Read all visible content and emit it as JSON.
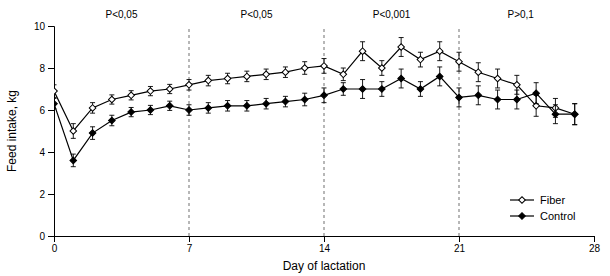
{
  "chart_data": {
    "type": "line",
    "x_label": "Day of lactation",
    "y_label": "Feed intake, kg",
    "x": [
      0,
      1,
      2,
      3,
      4,
      5,
      6,
      7,
      8,
      9,
      10,
      11,
      12,
      13,
      14,
      15,
      16,
      17,
      18,
      19,
      20,
      21,
      22,
      23,
      24,
      25,
      26,
      27
    ],
    "series": [
      {
        "name": "Fiber",
        "color": "#000000",
        "marker": "diamond-open",
        "values": [
          6.9,
          5.0,
          6.1,
          6.5,
          6.7,
          6.9,
          7.0,
          7.2,
          7.4,
          7.5,
          7.6,
          7.7,
          7.8,
          8.0,
          8.1,
          7.7,
          8.8,
          8.0,
          9.0,
          8.4,
          8.8,
          8.3,
          7.8,
          7.5,
          7.2,
          6.2,
          6.1,
          5.8
        ],
        "errors": [
          0.3,
          0.35,
          0.25,
          0.22,
          0.22,
          0.22,
          0.22,
          0.25,
          0.25,
          0.25,
          0.25,
          0.25,
          0.25,
          0.3,
          0.35,
          0.3,
          0.45,
          0.35,
          0.45,
          0.35,
          0.45,
          0.45,
          0.45,
          0.45,
          0.45,
          0.5,
          0.45,
          0.5
        ]
      },
      {
        "name": "Control",
        "color": "#000000",
        "marker": "diamond",
        "values": [
          6.3,
          3.6,
          4.9,
          5.5,
          5.9,
          6.0,
          6.2,
          6.0,
          6.1,
          6.2,
          6.2,
          6.3,
          6.4,
          6.5,
          6.7,
          7.0,
          7.0,
          7.0,
          7.5,
          7.0,
          7.6,
          6.6,
          6.7,
          6.5,
          6.5,
          6.8,
          5.8,
          5.8
        ],
        "errors": [
          0.25,
          0.3,
          0.3,
          0.25,
          0.22,
          0.22,
          0.22,
          0.25,
          0.25,
          0.25,
          0.25,
          0.25,
          0.25,
          0.3,
          0.35,
          0.3,
          0.45,
          0.35,
          0.45,
          0.35,
          0.45,
          0.45,
          0.45,
          0.45,
          0.45,
          0.5,
          0.45,
          0.5
        ]
      }
    ],
    "vlines": [
      7,
      14,
      21
    ],
    "annotations": [
      {
        "x": 3.5,
        "text": "P<0,05"
      },
      {
        "x": 10.5,
        "text": "P<0,05"
      },
      {
        "x": 17.5,
        "text": "P<0,001"
      },
      {
        "x": 24.2,
        "text": "P>0,1"
      }
    ],
    "xlim": [
      0,
      28
    ],
    "ylim": [
      0,
      10
    ],
    "xticks": [
      0,
      7,
      14,
      21,
      28
    ],
    "yticks": [
      0,
      2,
      4,
      6,
      8,
      10
    ],
    "grid": false,
    "legend": "lower right"
  }
}
